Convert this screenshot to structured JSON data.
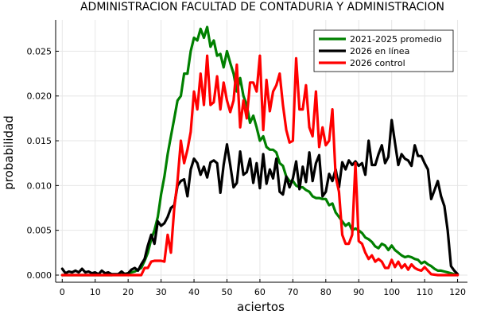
{
  "chart_data": {
    "type": "line",
    "title": "ADMINISTRACION  FACULTAD DE CONTADURIA Y ADMINISTRACION",
    "xlabel": "aciertos",
    "ylabel": "probabilidad",
    "xlim": [
      -2,
      123
    ],
    "ylim": [
      -0.0008,
      0.0285
    ],
    "xticks": [
      0,
      10,
      20,
      30,
      40,
      50,
      60,
      70,
      80,
      90,
      100,
      110,
      120
    ],
    "yticks": [
      0.0,
      0.005,
      0.01,
      0.015,
      0.02,
      0.025
    ],
    "ytick_labels": [
      "0.000",
      "0.005",
      "0.010",
      "0.015",
      "0.020",
      "0.025"
    ],
    "grid": true,
    "legend_position": "top-right",
    "series": [
      {
        "name": "2021-2025 promedio",
        "color": "#008000",
        "x": [
          0,
          5,
          10,
          15,
          18,
          20,
          22,
          24,
          25,
          26,
          27,
          28,
          29,
          30,
          31,
          32,
          33,
          34,
          35,
          36,
          37,
          38,
          39,
          40,
          41,
          42,
          43,
          44,
          45,
          46,
          47,
          48,
          49,
          50,
          51,
          52,
          53,
          54,
          55,
          56,
          57,
          58,
          59,
          60,
          61,
          62,
          63,
          64,
          65,
          66,
          67,
          68,
          69,
          70,
          71,
          72,
          73,
          74,
          75,
          76,
          77,
          78,
          79,
          80,
          81,
          82,
          83,
          84,
          85,
          86,
          87,
          88,
          89,
          90,
          91,
          92,
          93,
          94,
          95,
          96,
          97,
          98,
          99,
          100,
          101,
          102,
          103,
          104,
          105,
          106,
          107,
          108,
          109,
          110,
          111,
          112,
          113,
          114,
          115,
          116,
          117,
          118,
          119,
          120
        ],
        "y": [
          0,
          0,
          0,
          0,
          0.0001,
          0.0002,
          0.0004,
          0.0008,
          0.0016,
          0.0025,
          0.004,
          0.005,
          0.0065,
          0.009,
          0.011,
          0.0135,
          0.0155,
          0.0175,
          0.0195,
          0.02,
          0.0225,
          0.0225,
          0.025,
          0.0265,
          0.0262,
          0.0275,
          0.0265,
          0.0277,
          0.0255,
          0.0262,
          0.0245,
          0.0247,
          0.0232,
          0.025,
          0.0237,
          0.0225,
          0.0205,
          0.022,
          0.02,
          0.019,
          0.017,
          0.0178,
          0.0165,
          0.015,
          0.0155,
          0.0143,
          0.014,
          0.014,
          0.0137,
          0.0125,
          0.0122,
          0.011,
          0.0105,
          0.0105,
          0.01,
          0.0098,
          0.0098,
          0.0095,
          0.0093,
          0.0088,
          0.0086,
          0.0086,
          0.0085,
          0.0085,
          0.0078,
          0.008,
          0.007,
          0.0065,
          0.006,
          0.0055,
          0.0058,
          0.005,
          0.0052,
          0.005,
          0.0047,
          0.0042,
          0.004,
          0.0037,
          0.0032,
          0.003,
          0.0035,
          0.0033,
          0.0028,
          0.0033,
          0.0028,
          0.0025,
          0.0022,
          0.002,
          0.0021,
          0.002,
          0.0018,
          0.0017,
          0.0013,
          0.0015,
          0.0012,
          0.001,
          0.0007,
          0.0005,
          0.0005,
          0.0004,
          0.0003,
          0.0002,
          0.0001,
          0.0
        ]
      },
      {
        "name": "2026 en línea",
        "color": "#000000",
        "x": [
          0,
          1,
          2,
          3,
          4,
          5,
          6,
          7,
          8,
          9,
          10,
          11,
          12,
          13,
          14,
          15,
          16,
          17,
          18,
          19,
          20,
          21,
          22,
          23,
          24,
          25,
          26,
          27,
          28,
          29,
          30,
          31,
          32,
          33,
          34,
          35,
          36,
          37,
          38,
          39,
          40,
          41,
          42,
          43,
          44,
          45,
          46,
          47,
          48,
          49,
          50,
          51,
          52,
          53,
          54,
          55,
          56,
          57,
          58,
          59,
          60,
          61,
          62,
          63,
          64,
          65,
          66,
          67,
          68,
          69,
          70,
          71,
          72,
          73,
          74,
          75,
          76,
          77,
          78,
          79,
          80,
          81,
          82,
          83,
          84,
          85,
          86,
          87,
          88,
          89,
          90,
          91,
          92,
          93,
          94,
          95,
          96,
          97,
          98,
          99,
          100,
          101,
          102,
          103,
          104,
          105,
          106,
          107,
          108,
          109,
          110,
          111,
          112,
          113,
          114,
          115,
          116,
          117,
          118,
          119,
          120
        ],
        "y": [
          0.0007,
          0.0002,
          0.0004,
          0.0003,
          0.0005,
          0.0003,
          0.0007,
          0.0003,
          0.0004,
          0.0002,
          0.0003,
          0.0001,
          0.0005,
          0.0002,
          0.0003,
          0.0001,
          0.0001,
          0.0001,
          0.0004,
          0.0001,
          0.0002,
          0.0006,
          0.0008,
          0.0005,
          0.0012,
          0.0018,
          0.0033,
          0.0045,
          0.0035,
          0.006,
          0.0055,
          0.0058,
          0.0065,
          0.0075,
          0.0078,
          0.01,
          0.0105,
          0.0107,
          0.0088,
          0.0118,
          0.013,
          0.0125,
          0.0112,
          0.0121,
          0.0109,
          0.0126,
          0.0128,
          0.0125,
          0.0092,
          0.0123,
          0.0146,
          0.0123,
          0.0098,
          0.0103,
          0.0138,
          0.0112,
          0.0115,
          0.013,
          0.0103,
          0.0125,
          0.0097,
          0.0135,
          0.0102,
          0.0118,
          0.0108,
          0.013,
          0.0093,
          0.009,
          0.011,
          0.0098,
          0.0108,
          0.0127,
          0.0096,
          0.0121,
          0.0104,
          0.0137,
          0.0105,
          0.0125,
          0.0134,
          0.0088,
          0.0093,
          0.0113,
          0.0105,
          0.0118,
          0.0098,
          0.0126,
          0.0118,
          0.0128,
          0.0123,
          0.0127,
          0.0122,
          0.0125,
          0.0112,
          0.015,
          0.0123,
          0.0123,
          0.0135,
          0.0145,
          0.0125,
          0.0132,
          0.0173,
          0.0148,
          0.0123,
          0.0135,
          0.013,
          0.0128,
          0.0122,
          0.0145,
          0.0133,
          0.0133,
          0.0125,
          0.0118,
          0.0085,
          0.0095,
          0.0105,
          0.0088,
          0.0077,
          0.005,
          0.001,
          0.0005,
          0.0001
        ]
      },
      {
        "name": "2026 control",
        "color": "#ff0000",
        "x": [
          0,
          2,
          4,
          6,
          8,
          10,
          12,
          14,
          16,
          18,
          20,
          22,
          24,
          25,
          26,
          27,
          28,
          29,
          30,
          31,
          32,
          33,
          34,
          35,
          36,
          37,
          38,
          39,
          40,
          41,
          42,
          43,
          44,
          45,
          46,
          47,
          48,
          49,
          50,
          51,
          52,
          53,
          54,
          55,
          56,
          57,
          58,
          59,
          60,
          61,
          62,
          63,
          64,
          65,
          66,
          67,
          68,
          69,
          70,
          71,
          72,
          73,
          74,
          75,
          76,
          77,
          78,
          79,
          80,
          81,
          82,
          83,
          84,
          85,
          86,
          87,
          88,
          89,
          90,
          91,
          92,
          93,
          94,
          95,
          96,
          97,
          98,
          99,
          100,
          101,
          102,
          103,
          104,
          105,
          106,
          107,
          108,
          109,
          110,
          112,
          114,
          116,
          118,
          120
        ],
        "y": [
          0,
          0,
          0,
          0,
          0,
          0,
          0,
          0,
          0,
          0,
          0,
          0,
          0,
          0.0008,
          0.0008,
          0.0015,
          0.0016,
          0.0016,
          0.0016,
          0.0015,
          0.0045,
          0.0025,
          0.0075,
          0.0105,
          0.015,
          0.0125,
          0.014,
          0.016,
          0.0205,
          0.0185,
          0.0225,
          0.019,
          0.0245,
          0.019,
          0.0193,
          0.0222,
          0.0185,
          0.0215,
          0.0195,
          0.0182,
          0.0195,
          0.0235,
          0.0165,
          0.0195,
          0.0175,
          0.0215,
          0.0215,
          0.0205,
          0.0245,
          0.0162,
          0.0218,
          0.0183,
          0.0205,
          0.0212,
          0.0225,
          0.019,
          0.0162,
          0.0148,
          0.015,
          0.0242,
          0.0185,
          0.0185,
          0.0212,
          0.0165,
          0.0155,
          0.0205,
          0.0143,
          0.0165,
          0.0145,
          0.015,
          0.0185,
          0.011,
          0.0093,
          0.0045,
          0.0035,
          0.0035,
          0.0045,
          0.0125,
          0.0038,
          0.0035,
          0.0025,
          0.0018,
          0.0022,
          0.0015,
          0.0018,
          0.0015,
          0.0008,
          0.0008,
          0.0017,
          0.0009,
          0.0015,
          0.0008,
          0.0012,
          0.0006,
          0.0012,
          0.0008,
          0.0006,
          0.0005,
          0.0009,
          0.0001,
          0,
          0,
          0,
          0
        ]
      }
    ]
  }
}
